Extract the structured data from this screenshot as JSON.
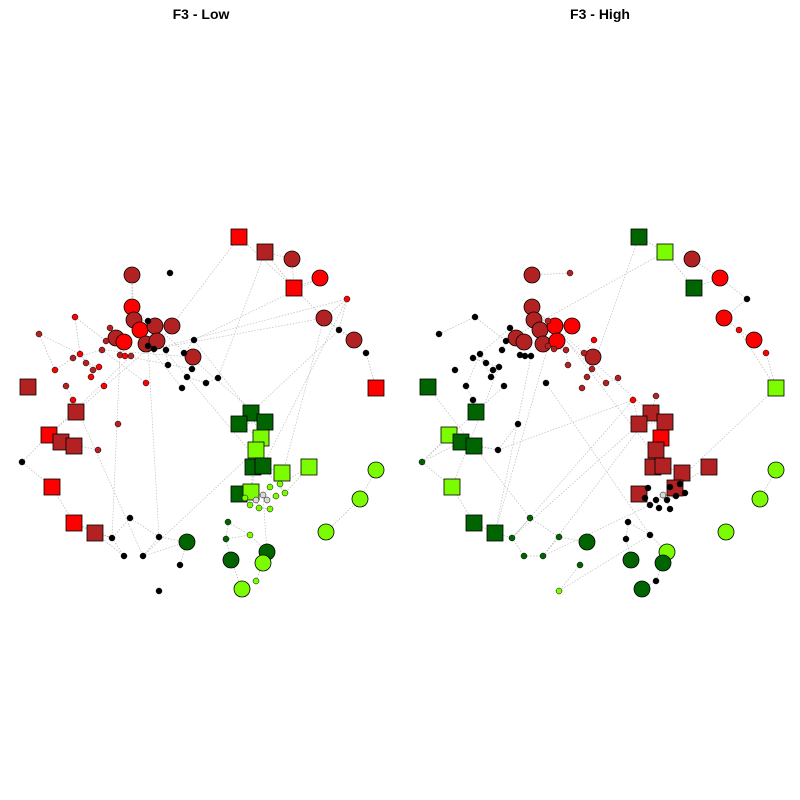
{
  "panels": [
    {
      "title": "F3 - Low"
    },
    {
      "title": "F3 - High"
    }
  ],
  "node_colors": {
    "red": "#ff0000",
    "dark_red": "#b22222",
    "black": "#000000",
    "dark_green": "#006400",
    "light_green": "#7cfc00",
    "light_grey": "#d9d9d9"
  },
  "edge_color": "#bdbdbd",
  "node_shapes": [
    "circle",
    "square"
  ]
}
